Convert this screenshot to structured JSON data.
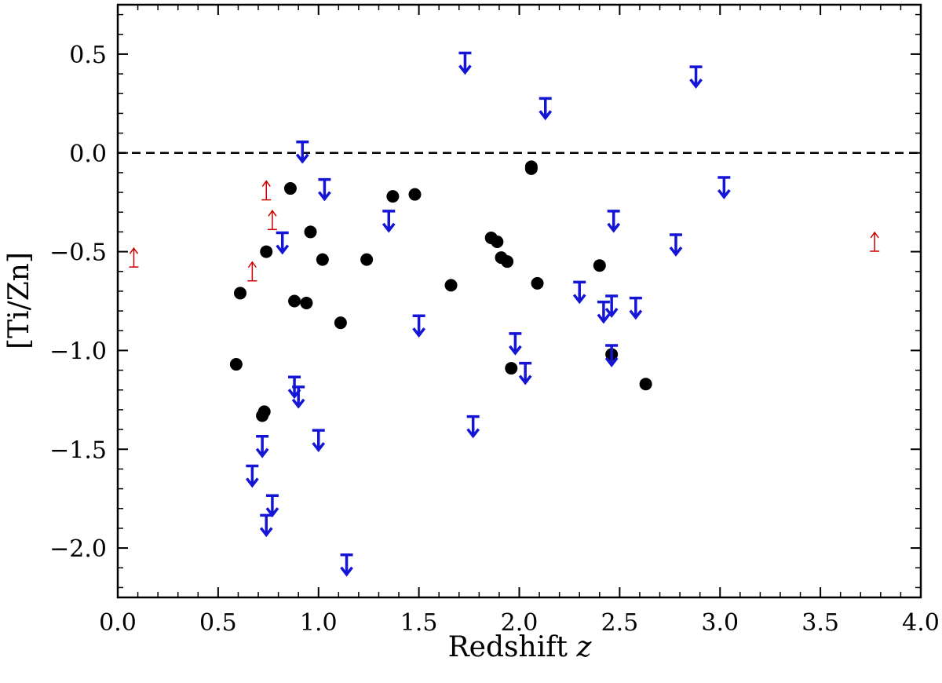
{
  "chart_data": {
    "type": "scatter",
    "title": "",
    "xlabel": "Redshift",
    "xlabel_var": "z",
    "ylabel": "[Ti/Zn]",
    "xlim": [
      0.0,
      4.0
    ],
    "ylim": [
      -2.25,
      0.75
    ],
    "xticks": [
      {
        "value": 0.0,
        "label": "0.0"
      },
      {
        "value": 0.5,
        "label": "0.5"
      },
      {
        "value": 1.0,
        "label": "1.0"
      },
      {
        "value": 1.5,
        "label": "1.5"
      },
      {
        "value": 2.0,
        "label": "2.0"
      },
      {
        "value": 2.5,
        "label": "2.5"
      },
      {
        "value": 3.0,
        "label": "3.0"
      },
      {
        "value": 3.5,
        "label": "3.5"
      },
      {
        "value": 4.0,
        "label": "4.0"
      }
    ],
    "yticks": [
      {
        "value": 0.5,
        "label": "0.5"
      },
      {
        "value": 0.0,
        "label": "0.0"
      },
      {
        "value": -0.5,
        "label": "−0.5"
      },
      {
        "value": -1.0,
        "label": "−1.0"
      },
      {
        "value": -1.5,
        "label": "−1.5"
      },
      {
        "value": -2.0,
        "label": "−2.0"
      }
    ],
    "reference_line": {
      "y": 0.0,
      "style": "dashed",
      "color": "#000000"
    },
    "grid": false,
    "series": [
      {
        "kind": "detection",
        "marker": "filled-circle",
        "color": "#000000",
        "points": [
          {
            "x": 0.59,
            "y": -1.07
          },
          {
            "x": 0.61,
            "y": -0.71
          },
          {
            "x": 0.72,
            "y": -1.33
          },
          {
            "x": 0.73,
            "y": -1.31
          },
          {
            "x": 0.74,
            "y": -0.5
          },
          {
            "x": 0.86,
            "y": -0.18
          },
          {
            "x": 0.88,
            "y": -0.75
          },
          {
            "x": 0.94,
            "y": -0.76
          },
          {
            "x": 0.96,
            "y": -0.4
          },
          {
            "x": 1.02,
            "y": -0.54
          },
          {
            "x": 1.11,
            "y": -0.86
          },
          {
            "x": 1.24,
            "y": -0.54
          },
          {
            "x": 1.37,
            "y": -0.22
          },
          {
            "x": 1.48,
            "y": -0.21
          },
          {
            "x": 1.66,
            "y": -0.67
          },
          {
            "x": 1.86,
            "y": -0.43
          },
          {
            "x": 1.89,
            "y": -0.45
          },
          {
            "x": 1.91,
            "y": -0.53
          },
          {
            "x": 1.94,
            "y": -0.55
          },
          {
            "x": 1.96,
            "y": -1.09
          },
          {
            "x": 2.06,
            "y": -0.07
          },
          {
            "x": 2.06,
            "y": -0.08
          },
          {
            "x": 2.09,
            "y": -0.66
          },
          {
            "x": 2.4,
            "y": -0.57
          },
          {
            "x": 2.46,
            "y": -1.02
          },
          {
            "x": 2.63,
            "y": -1.17
          }
        ]
      },
      {
        "kind": "upper-limit",
        "marker": "down-arrow",
        "color": "#1515d6",
        "points": [
          {
            "x": 0.67,
            "y": -1.64
          },
          {
            "x": 0.72,
            "y": -1.49
          },
          {
            "x": 0.74,
            "y": -1.89
          },
          {
            "x": 0.77,
            "y": -1.79
          },
          {
            "x": 0.82,
            "y": -0.46
          },
          {
            "x": 0.88,
            "y": -1.19
          },
          {
            "x": 0.9,
            "y": -1.24
          },
          {
            "x": 0.92,
            "y": 0.0
          },
          {
            "x": 1.0,
            "y": -1.46
          },
          {
            "x": 1.03,
            "y": -0.19
          },
          {
            "x": 1.14,
            "y": -2.09
          },
          {
            "x": 1.35,
            "y": -0.35
          },
          {
            "x": 1.5,
            "y": -0.88
          },
          {
            "x": 1.73,
            "y": 0.45
          },
          {
            "x": 1.77,
            "y": -1.39
          },
          {
            "x": 1.98,
            "y": -0.97
          },
          {
            "x": 2.03,
            "y": -1.12
          },
          {
            "x": 2.13,
            "y": 0.22
          },
          {
            "x": 2.3,
            "y": -0.71
          },
          {
            "x": 2.42,
            "y": -0.81
          },
          {
            "x": 2.46,
            "y": -0.78
          },
          {
            "x": 2.46,
            "y": -1.03
          },
          {
            "x": 2.47,
            "y": -0.35
          },
          {
            "x": 2.58,
            "y": -0.79
          },
          {
            "x": 2.78,
            "y": -0.47
          },
          {
            "x": 2.88,
            "y": 0.38
          },
          {
            "x": 3.02,
            "y": -0.18
          }
        ]
      },
      {
        "kind": "lower-limit",
        "marker": "up-arrow",
        "color": "#cc0000",
        "points": [
          {
            "x": 0.08,
            "y": -0.53
          },
          {
            "x": 0.67,
            "y": -0.6
          },
          {
            "x": 0.74,
            "y": -0.19
          },
          {
            "x": 0.77,
            "y": -0.34
          },
          {
            "x": 3.77,
            "y": -0.45
          }
        ]
      }
    ]
  }
}
